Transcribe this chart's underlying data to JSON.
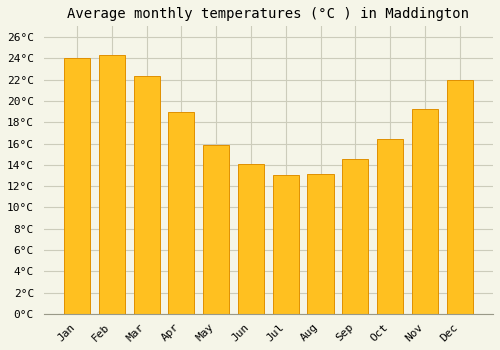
{
  "title": "Average monthly temperatures (°C ) in Maddington",
  "months": [
    "Jan",
    "Feb",
    "Mar",
    "Apr",
    "May",
    "Jun",
    "Jul",
    "Aug",
    "Sep",
    "Oct",
    "Nov",
    "Dec"
  ],
  "values": [
    24.0,
    24.3,
    22.3,
    19.0,
    15.9,
    14.1,
    13.0,
    13.1,
    14.5,
    16.4,
    19.2,
    22.0
  ],
  "bar_color": "#FFC020",
  "bar_edge_color": "#E09000",
  "background_color": "#F5F5E8",
  "grid_color": "#CCCCBB",
  "ylim": [
    0,
    27
  ],
  "ytick_step": 2,
  "title_fontsize": 10,
  "tick_fontsize": 8,
  "font_family": "monospace"
}
